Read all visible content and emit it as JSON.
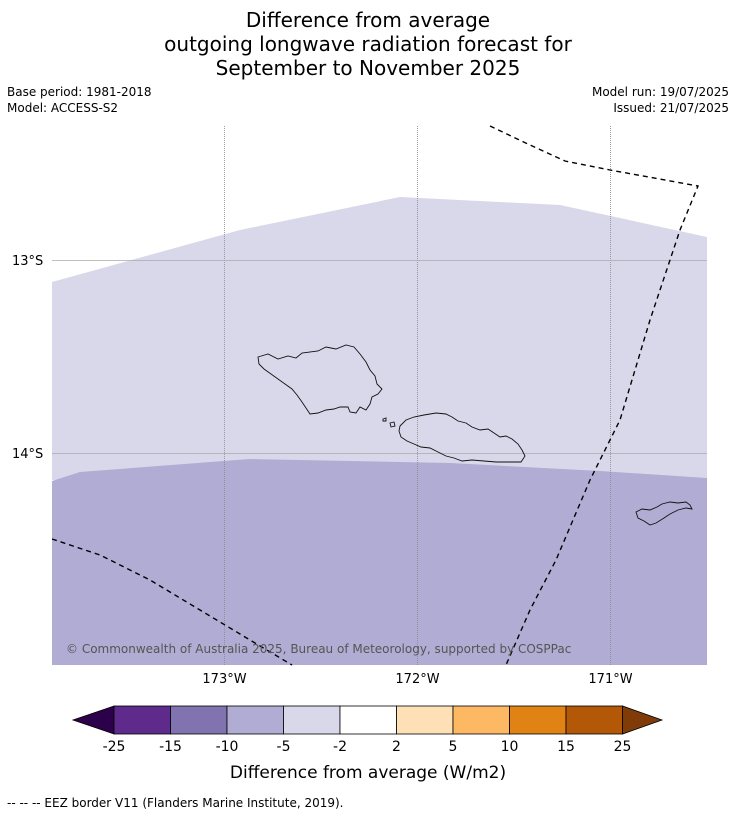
{
  "title": {
    "line1": "Difference from average",
    "line2": "outgoing longwave radiation forecast for",
    "line3": "September to November 2025"
  },
  "meta": {
    "base_period": "Base period: 1981-2018",
    "model": "Model: ACCESS-S2",
    "model_run": "Model run: 19/07/2025",
    "issued": "Issued: 21/07/2025"
  },
  "map": {
    "lat_labels": [
      "13°S",
      "14°S"
    ],
    "lon_labels": [
      "173°W",
      "172°W",
      "171°W"
    ],
    "copyright": "© Commonwealth of Australia 2025, Bureau of Meteorology, supported by COSPPac",
    "zones": [
      {
        "range": "-5 to -2",
        "color": "#d8d8ea"
      },
      {
        "range": "-10 to -5",
        "color": "#b1acd3"
      }
    ],
    "features": [
      "Savai'i",
      "Upolu",
      "Tutuila",
      "EEZ border"
    ]
  },
  "colorbar": {
    "ticks": [
      "-25",
      "-15",
      "-10",
      "-5",
      "-2",
      "2",
      "5",
      "10",
      "15",
      "25"
    ],
    "colors": [
      "#5e2a8c",
      "#8073b0",
      "#b1acd3",
      "#d8d8ea",
      "#ffffff",
      "#fee0b6",
      "#fdb863",
      "#e08214",
      "#b35806"
    ],
    "under_color": "#2d004b",
    "over_color": "#7f3b08",
    "label": "Difference from average (W/m2)"
  },
  "legend_note": "--  --  -- EEZ border V11 (Flanders Marine Institute, 2019)."
}
